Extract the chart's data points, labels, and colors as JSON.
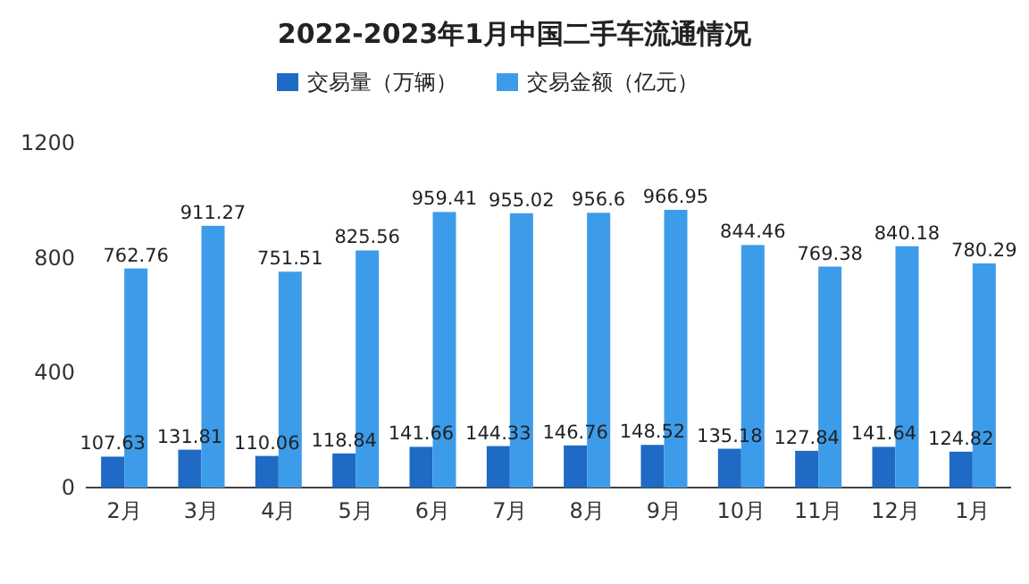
{
  "chart_data": {
    "type": "bar",
    "title": "2022-2023年1月中国二手车流通情况",
    "categories": [
      "2月",
      "3月",
      "4月",
      "5月",
      "6月",
      "7月",
      "8月",
      "9月",
      "10月",
      "11月",
      "12月",
      "1月"
    ],
    "series": [
      {
        "name": "交易量（万辆）",
        "color": "#1e6ac4",
        "values": [
          107.63,
          131.81,
          110.06,
          118.84,
          141.66,
          144.33,
          146.76,
          148.52,
          135.18,
          127.84,
          141.64,
          124.82
        ]
      },
      {
        "name": "交易金额（亿元）",
        "color": "#3d9cea",
        "values": [
          762.76,
          911.27,
          751.51,
          825.56,
          959.41,
          955.02,
          956.6,
          966.95,
          844.46,
          769.38,
          840.18,
          780.29
        ]
      }
    ],
    "ylim": [
      0,
      1200
    ],
    "yticks": [
      0,
      400,
      800,
      1200
    ],
    "legend": "top",
    "data_labels": true
  }
}
